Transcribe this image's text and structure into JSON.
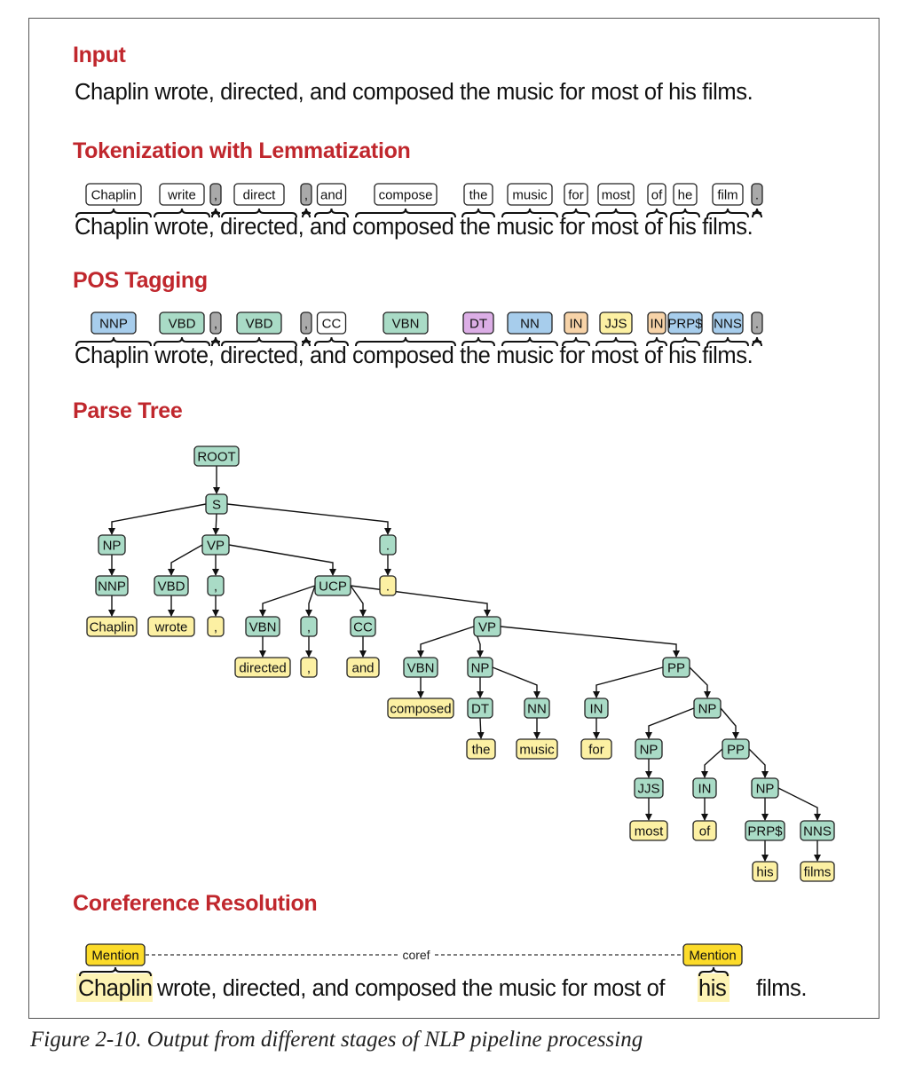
{
  "caption": "Figure 2-10. Output from different stages of NLP pipeline processing",
  "colors": {
    "heading": "#c0272d",
    "green": "#a9dbc6",
    "blue": "#a7cdec",
    "purple": "#dcaee6",
    "orange": "#f7d3a8",
    "yellow": "#fcf0a3",
    "gray": "#a9a9a9",
    "white": "#ffffff",
    "mention": "#fcdb2a"
  },
  "input": {
    "heading": "Input",
    "sentence": "Chaplin wrote, directed, and composed the music for most of his films."
  },
  "tokenization": {
    "heading": "Tokenization with Lemmatization",
    "sentence": "Chaplin wrote, directed, and composed the music for most of his films.",
    "tokens": [
      {
        "label": "Chaplin",
        "color": "white"
      },
      {
        "label": "write",
        "color": "white"
      },
      {
        "label": ",",
        "color": "gray"
      },
      {
        "label": "direct",
        "color": "white"
      },
      {
        "label": ",",
        "color": "gray"
      },
      {
        "label": "and",
        "color": "white"
      },
      {
        "label": "compose",
        "color": "white"
      },
      {
        "label": "the",
        "color": "white"
      },
      {
        "label": "music",
        "color": "white"
      },
      {
        "label": "for",
        "color": "white"
      },
      {
        "label": "most",
        "color": "white"
      },
      {
        "label": "of",
        "color": "white"
      },
      {
        "label": "he",
        "color": "white"
      },
      {
        "label": "film",
        "color": "white"
      },
      {
        "label": ".",
        "color": "gray"
      }
    ]
  },
  "pos": {
    "heading": "POS Tagging",
    "sentence": "Chaplin wrote, directed, and composed the music for most of his films.",
    "tags": [
      {
        "label": "NNP",
        "color": "blue"
      },
      {
        "label": "VBD",
        "color": "green"
      },
      {
        "label": ",",
        "color": "gray"
      },
      {
        "label": "VBD",
        "color": "green"
      },
      {
        "label": ",",
        "color": "gray"
      },
      {
        "label": "CC",
        "color": "white"
      },
      {
        "label": "VBN",
        "color": "green"
      },
      {
        "label": "DT",
        "color": "purple"
      },
      {
        "label": "NN",
        "color": "blue"
      },
      {
        "label": "IN",
        "color": "orange"
      },
      {
        "label": "JJS",
        "color": "yellow"
      },
      {
        "label": "IN",
        "color": "orange"
      },
      {
        "label": "PRP$",
        "color": "blue"
      },
      {
        "label": "NNS",
        "color": "blue"
      },
      {
        "label": ".",
        "color": "gray"
      }
    ]
  },
  "parse": {
    "heading": "Parse Tree",
    "nodes": {
      "root": {
        "label": "ROOT",
        "color": "green"
      },
      "s": {
        "label": "S",
        "color": "green"
      },
      "np1": {
        "label": "NP",
        "color": "green"
      },
      "vp1": {
        "label": "VP",
        "color": "green"
      },
      "dot1": {
        "label": ".",
        "color": "green"
      },
      "nnp": {
        "label": "NNP",
        "color": "green"
      },
      "vbd": {
        "label": "VBD",
        "color": "green"
      },
      "comma1": {
        "label": ",",
        "color": "green"
      },
      "ucp": {
        "label": "UCP",
        "color": "green"
      },
      "dotw": {
        "label": ".",
        "color": "yellow"
      },
      "chaplin": {
        "label": "Chaplin",
        "color": "yellow"
      },
      "wrote": {
        "label": "wrote",
        "color": "yellow"
      },
      "comma1w": {
        "label": ",",
        "color": "yellow"
      },
      "vbn1": {
        "label": "VBN",
        "color": "green"
      },
      "comma2": {
        "label": ",",
        "color": "green"
      },
      "cc": {
        "label": "CC",
        "color": "green"
      },
      "vp2": {
        "label": "VP",
        "color": "green"
      },
      "directed": {
        "label": "directed",
        "color": "yellow"
      },
      "comma2w": {
        "label": ",",
        "color": "yellow"
      },
      "and": {
        "label": "and",
        "color": "yellow"
      },
      "vbn2": {
        "label": "VBN",
        "color": "green"
      },
      "np2": {
        "label": "NP",
        "color": "green"
      },
      "pp1": {
        "label": "PP",
        "color": "green"
      },
      "composed": {
        "label": "composed",
        "color": "yellow"
      },
      "dt": {
        "label": "DT",
        "color": "green"
      },
      "nn": {
        "label": "NN",
        "color": "green"
      },
      "in1": {
        "label": "IN",
        "color": "green"
      },
      "np3": {
        "label": "NP",
        "color": "green"
      },
      "the": {
        "label": "the",
        "color": "yellow"
      },
      "music": {
        "label": "music",
        "color": "yellow"
      },
      "for": {
        "label": "for",
        "color": "yellow"
      },
      "np4": {
        "label": "NP",
        "color": "green"
      },
      "pp2": {
        "label": "PP",
        "color": "green"
      },
      "jjs": {
        "label": "JJS",
        "color": "green"
      },
      "in2": {
        "label": "IN",
        "color": "green"
      },
      "np5": {
        "label": "NP",
        "color": "green"
      },
      "most": {
        "label": "most",
        "color": "yellow"
      },
      "of": {
        "label": "of",
        "color": "yellow"
      },
      "prp": {
        "label": "PRP$",
        "color": "green"
      },
      "nns": {
        "label": "NNS",
        "color": "green"
      },
      "his": {
        "label": "his",
        "color": "yellow"
      },
      "films": {
        "label": "films",
        "color": "yellow"
      }
    },
    "edges": [
      [
        "root",
        "s"
      ],
      [
        "s",
        "np1"
      ],
      [
        "s",
        "vp1"
      ],
      [
        "s",
        "dot1"
      ],
      [
        "np1",
        "nnp"
      ],
      [
        "nnp",
        "chaplin"
      ],
      [
        "vp1",
        "vbd"
      ],
      [
        "vp1",
        "comma1"
      ],
      [
        "vp1",
        "ucp"
      ],
      [
        "vbd",
        "wrote"
      ],
      [
        "comma1",
        "comma1w"
      ],
      [
        "dot1",
        "dotw"
      ],
      [
        "ucp",
        "vbn1"
      ],
      [
        "ucp",
        "comma2"
      ],
      [
        "ucp",
        "cc"
      ],
      [
        "ucp",
        "vp2"
      ],
      [
        "vbn1",
        "directed"
      ],
      [
        "comma2",
        "comma2w"
      ],
      [
        "cc",
        "and"
      ],
      [
        "vp2",
        "vbn2"
      ],
      [
        "vp2",
        "np2"
      ],
      [
        "vp2",
        "pp1"
      ],
      [
        "vbn2",
        "composed"
      ],
      [
        "np2",
        "dt"
      ],
      [
        "np2",
        "nn"
      ],
      [
        "dt",
        "the"
      ],
      [
        "nn",
        "music"
      ],
      [
        "pp1",
        "in1"
      ],
      [
        "pp1",
        "np3"
      ],
      [
        "in1",
        "for"
      ],
      [
        "np3",
        "np4"
      ],
      [
        "np3",
        "pp2"
      ],
      [
        "np4",
        "jjs"
      ],
      [
        "jjs",
        "most"
      ],
      [
        "pp2",
        "in2"
      ],
      [
        "pp2",
        "np5"
      ],
      [
        "in2",
        "of"
      ],
      [
        "np5",
        "prp"
      ],
      [
        "np5",
        "nns"
      ],
      [
        "prp",
        "his"
      ],
      [
        "nns",
        "films"
      ]
    ]
  },
  "coref": {
    "heading": "Coreference Resolution",
    "mention_label": "Mention",
    "link_label": "coref",
    "mention_word_1": "Chaplin",
    "middle_text": "wrote, directed, and composed the music for most of",
    "mention_word_2": "his",
    "end_text": "films."
  }
}
